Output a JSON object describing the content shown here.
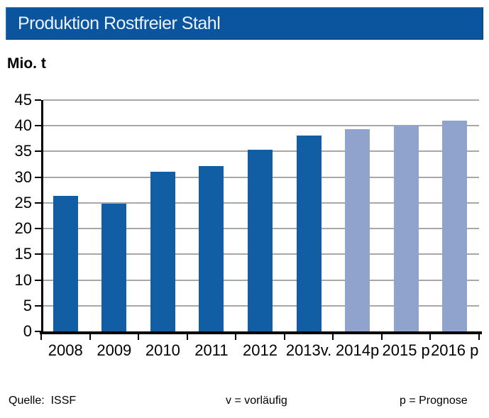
{
  "header": {
    "title": "Produktion Rostfreier Stahl"
  },
  "chart_data": {
    "type": "bar",
    "title": "Produktion Rostfreier Stahl",
    "ylabel": "Mio. t",
    "xlabel": "",
    "categories": [
      "2008",
      "2009",
      "2010",
      "2011",
      "2012",
      "2013v.",
      "2014p",
      "2015 p",
      "2016 p"
    ],
    "values": [
      26.3,
      24.9,
      31.1,
      32.1,
      35.4,
      38.1,
      39.3,
      40.0,
      41.0
    ],
    "bar_types": [
      "actual",
      "actual",
      "actual",
      "actual",
      "actual",
      "actual",
      "forecast",
      "forecast",
      "forecast"
    ],
    "ylim": [
      0,
      45
    ],
    "ytick_step": 5,
    "grid": true,
    "legend_position": "none",
    "colors": {
      "actual": "#125EA4",
      "forecast": "#8FA3CD",
      "gridline": "#A8A8A8",
      "axis": "#000000"
    }
  },
  "footer": {
    "source": "Quelle:  ISSF",
    "note_v": "v = vorläufig",
    "note_p": "p = Prognose"
  },
  "colors": {
    "header_bg": "#0B549E",
    "header_text": "#EDF3FA",
    "background": "#FFFFFF",
    "text": "#000000"
  }
}
